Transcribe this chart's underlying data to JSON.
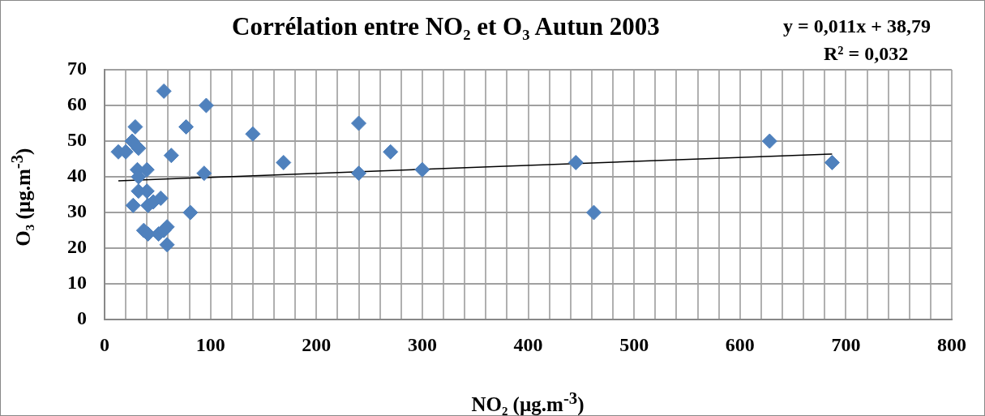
{
  "chart_data": {
    "type": "scatter",
    "title": "Corrélation entre NO₂ et O₃  Autun 2003",
    "xlabel": "NO₂ (µg.m$^{-3}$)",
    "ylabel": "O₃ (µg.m$^{-3}$)",
    "annotations": [
      "y = 0,011x + 38,79",
      "R² = 0,032"
    ],
    "xlim": [
      0,
      800
    ],
    "ylim": [
      0,
      70
    ],
    "xticks": [
      0,
      {
        "value": 20,
        "label": null
      },
      {
        "value": 40,
        "label": null
      },
      {
        "value": 60,
        "label": null
      },
      {
        "value": 80,
        "label": null
      },
      100,
      {
        "value": 120,
        "label": null
      },
      {
        "value": 140,
        "label": null
      },
      {
        "value": 160,
        "label": null
      },
      {
        "value": 180,
        "label": null
      },
      200,
      {
        "value": 220,
        "label": null
      },
      {
        "value": 240,
        "label": null
      },
      {
        "value": 260,
        "label": null
      },
      {
        "value": 280,
        "label": null
      },
      300,
      {
        "value": 320,
        "label": null
      },
      {
        "value": 340,
        "label": null
      },
      {
        "value": 360,
        "label": null
      },
      {
        "value": 380,
        "label": null
      },
      400,
      {
        "value": 420,
        "label": null
      },
      {
        "value": 440,
        "label": null
      },
      {
        "value": 460,
        "label": null
      },
      {
        "value": 480,
        "label": null
      },
      500,
      {
        "value": 520,
        "label": null
      },
      {
        "value": 540,
        "label": null
      },
      {
        "value": 560,
        "label": null
      },
      {
        "value": 580,
        "label": null
      },
      600,
      {
        "value": 620,
        "label": null
      },
      {
        "value": 640,
        "label": null
      },
      {
        "value": 660,
        "label": null
      },
      {
        "value": 680,
        "label": null
      },
      700,
      {
        "value": 720,
        "label": null
      },
      {
        "value": 740,
        "label": null
      },
      {
        "value": 760,
        "label": null
      },
      {
        "value": 780,
        "label": null
      },
      800
    ],
    "yticks": [
      0,
      10,
      20,
      30,
      40,
      50,
      60,
      70
    ],
    "grid": true,
    "legend": false,
    "marker": "diamond",
    "series": [
      {
        "color": "#4f81bd",
        "x": [
          56,
          96,
          29,
          77,
          140,
          26,
          32,
          13,
          20,
          63,
          169,
          31,
          40,
          32,
          94,
          32,
          40,
          27,
          41,
          46,
          53,
          81,
          37,
          41,
          51,
          59,
          56,
          59,
          240,
          240,
          270,
          300,
          445,
          462,
          628,
          687
        ],
        "values": [
          64,
          60,
          54,
          54,
          52,
          50,
          48,
          47,
          47,
          46,
          44,
          42,
          42,
          40,
          41,
          36,
          36,
          32,
          32,
          33,
          34,
          30,
          25,
          24,
          24,
          26,
          25,
          21,
          55,
          41,
          47,
          42,
          44,
          30,
          50,
          44
        ]
      },
      {
        "type": "line",
        "color": "#000000",
        "x": [
          13,
          687
        ],
        "values": [
          38.9,
          46.4
        ],
        "marker": "none"
      }
    ]
  }
}
